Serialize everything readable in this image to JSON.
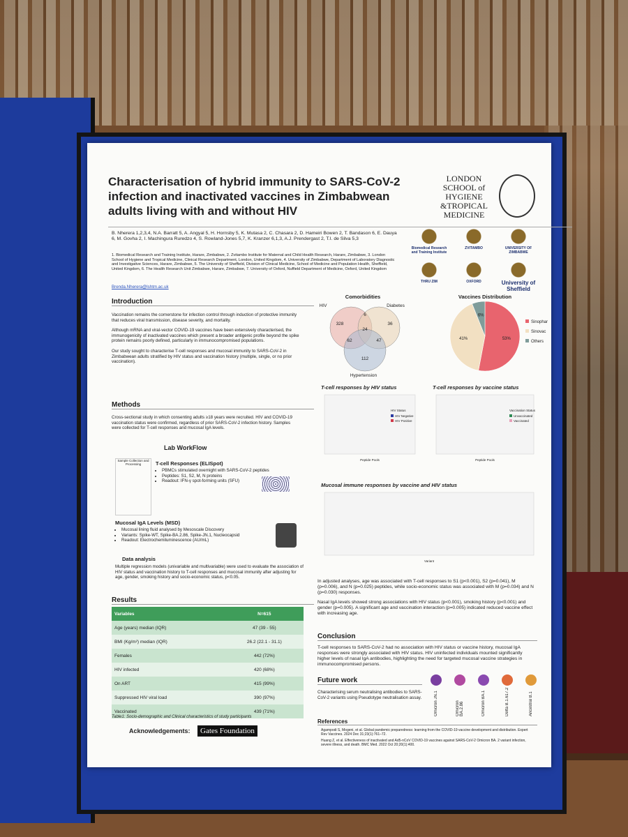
{
  "poster": {
    "title": "Characterisation of hybrid immunity to SARS-CoV-2 infection and inactivated vaccines in Zimbabwean adults living with and without HIV",
    "institution": "LONDON SCHOOL of HYGIENE &TROPICAL MEDICINE",
    "authors": "B. Nherera 1,2,3,4, N.A. Barratt 5, A. Angyal 5, H. Hornsby 5, K. Mutasa 2, C. Chasara 2, D. Hameiri Bowen 2, T. Bandason 6, E. Dauya 6, M. Govha 2, I. Machingura Ruredzo 4, S. Rowland-Jones 5,7, K. Kranzer 6,1,3, A.J. Prendergast 2, T.I. de Silva 5,3",
    "affiliations": "1. Biomedical Research and Training Institute, Harare, Zimbabwe, 2. Zvitambo Institute for Maternal and Child Health Research, Harare, Zimbabwe, 3. London School of Hygiene and Tropical Medicine, Clinical Research Department, London, United Kingdom, 4. University of Zimbabwe, Department of Laboratory Diagnostic and Investigative Sciences, Harare, Zimbabwe, 5. The University of Sheffield, Division of Clinical Medicine, School of Medicine and Population Health, Sheffield, United Kingdom, 6. The Health Research Unit Zimbabwe, Harare, Zimbabwe, 7. University of Oxford, Nuffield Department of Medicine, Oxford, United Kingdom",
    "email": "Brenda.Nherera@lshtm.ac.uk",
    "partner_logos": [
      "Biomedical Research and Training Institute",
      "ZVITAMBO",
      "UNIVERSITY OF ZIMBABWE",
      "THRU ZIM",
      "OXFORD",
      "University of Sheffield"
    ],
    "introduction": {
      "heading": "Introduction",
      "paragraphs": [
        "Vaccination remains the cornerstone for infection control through induction of protective immunity that reduces viral transmission, disease severity, and mortality.",
        "Although mRNA and viral-vector COVID-19 vaccines have been extensively characterised, the immunogenicity of inactivated vaccines which present a broader antigenic profile beyond the spike protein remains poorly defined, particularly in immunocompromised populations.",
        "Our study sought to characterise T-cell responses and mucosal immunity to SARS-CoV-2 in Zimbabwean adults stratified by HIV status and vaccination history (multiple, single, or no prior vaccination)."
      ]
    },
    "methods": {
      "heading": "Methods",
      "text": "Cross-sectional study in which consenting adults ≥18 years were recruited. HIV and COVID-19 vaccination status were confirmed, regardless of prior SARS-CoV-2 infection history. Samples were collected for T-cell responses and mucosal IgA levels.",
      "workflow_heading": "Lab WorkFlow",
      "sample_label": "Sample Collection and Processing",
      "tcell_heading": "T-cell Responses (ELISpot)",
      "tcell_points": [
        "PBMCs stimulated overnight with SARS-CoV-2 peptides",
        "Peptides: S1, S2, M, N proteins",
        "Readout: IFN-γ spot-forming units (SFU)"
      ],
      "iga_heading": "Mucosal IgA Levels (MSD)",
      "iga_points": [
        "Mucosal lining fluid analysed by Mesoscale Discovery",
        "Variants: Spike-WT, Spike-BA.2.86, Spike-JN.1, Nucleocapsid",
        "Readout: Electrochemiluminescence (AU/mL)"
      ],
      "analysis_heading": "Data analysis",
      "analysis_text": "Multiple regression models (univariable and multivariable) were used to evaluate the association of HIV status and vaccination history to T-cell responses and mucosal immunity after adjusting for age, gender, smoking history and socio-economic status, p<0.05."
    },
    "results": {
      "heading": "Results",
      "table": {
        "header": [
          "Variables",
          "N=615"
        ],
        "rows": [
          [
            "Age (years) median (IQR)",
            "47 (39 - 55)"
          ],
          [
            "BMI (Kg/m²) median (IQR)",
            "26.2 (22.1 - 31.1)"
          ],
          [
            "Females",
            "442 (72%)"
          ],
          [
            "HIV infected",
            "420 (68%)"
          ],
          [
            "On ART",
            "415 (99%)"
          ],
          [
            "Suppressed HIV viral load",
            "390 (97%)"
          ],
          [
            "Vaccinated",
            "439 (71%)"
          ]
        ]
      },
      "caption": "Table1: Socio-demographic and Clinical characteristics of study participants"
    },
    "acknowledgements": {
      "heading": "Acknowledgements:",
      "funder": "Gates Foundation"
    },
    "comorbidities": {
      "title": "Comorbidities",
      "sets": [
        "HIV",
        "Diabetes",
        "Hypertension"
      ],
      "counts": [
        "328",
        "6",
        "36",
        "24",
        "62",
        "47",
        "112"
      ]
    },
    "vaccines_pie": {
      "title": "Vaccines Distribution",
      "labels": [
        "Sinopharm",
        "Sinovac",
        "Others"
      ],
      "values": [
        53,
        41,
        6
      ],
      "value_labels": [
        "53%",
        "41%",
        "6%"
      ],
      "colors": [
        "#e8646e",
        "#f2e0c2",
        "#7f9c9a"
      ]
    },
    "plots": [
      {
        "title": "T-cell responses by HIV status",
        "legend_title": "HIV Status",
        "legend": [
          "HIV Negative",
          "HIV Positive"
        ],
        "x_label": "Peptide Pools"
      },
      {
        "title": "T-cell responses by vaccine status",
        "legend_title": "Vaccination Status",
        "legend": [
          "Unvaccinated",
          "Vaccinated"
        ],
        "x_label": "Peptide Pools"
      },
      {
        "title": "Mucosal immune responses by vaccine and HIV status",
        "x_label": "Variant"
      }
    ],
    "findings": [
      "In adjusted analyses, age was associated with T-cell responses to S1 (p<0.001), S2 (p=0.041), M (p=0.006), and N (p=0.025) peptides, while socio-economic status was associated with M (p=0.034) and N (p=0.030) responses.",
      "Nasal IgA levels showed strong associations with HIV status (p<0.001), smoking history (p<0.001) and gender (p=0.005). A significant age and vaccination interaction (p=0.005) indicated reduced vaccine effect with increasing age."
    ],
    "conclusion": {
      "heading": "Conclusion",
      "text": "T-cell responses to SARS-CoV-2 had no association with HIV status or vaccine history, mucosal IgA responses were strongly associated with HIV status. HIV uninfected individuals mounted significantly higher levels of nasal IgA antibodies, highlighting the need for targeted mucosal vaccine strategies in immunocompromised persons."
    },
    "future_work": {
      "heading": "Future work",
      "text": "Characterising serum neutralising antibodies to SARS-CoV-2 variants using Pseudotype neutralisation assay.",
      "variants": [
        "Omicron JN.1",
        "Omicron BA.2.86",
        "Omicron BA.1",
        "Delta B.1.617.2",
        "Ancestral B.1"
      ]
    },
    "references": {
      "heading": "References",
      "items": [
        "Agampodi S, Mogeni, et al. Global pandemic preparedness: learning from the COVID-19 vaccine development and distribution. Expert Rev Vaccines. 2024 Dec 31;23(1):761–72.",
        "Huang Z, et al. Effectiveness of inactivated and Ad5-nCoV COVID-19 vaccines against SARS-CoV-2 Omicron BA. 2 variant infection, severe illness, and death. BMC Med. 2022 Oct 20;20(1):400."
      ]
    }
  }
}
